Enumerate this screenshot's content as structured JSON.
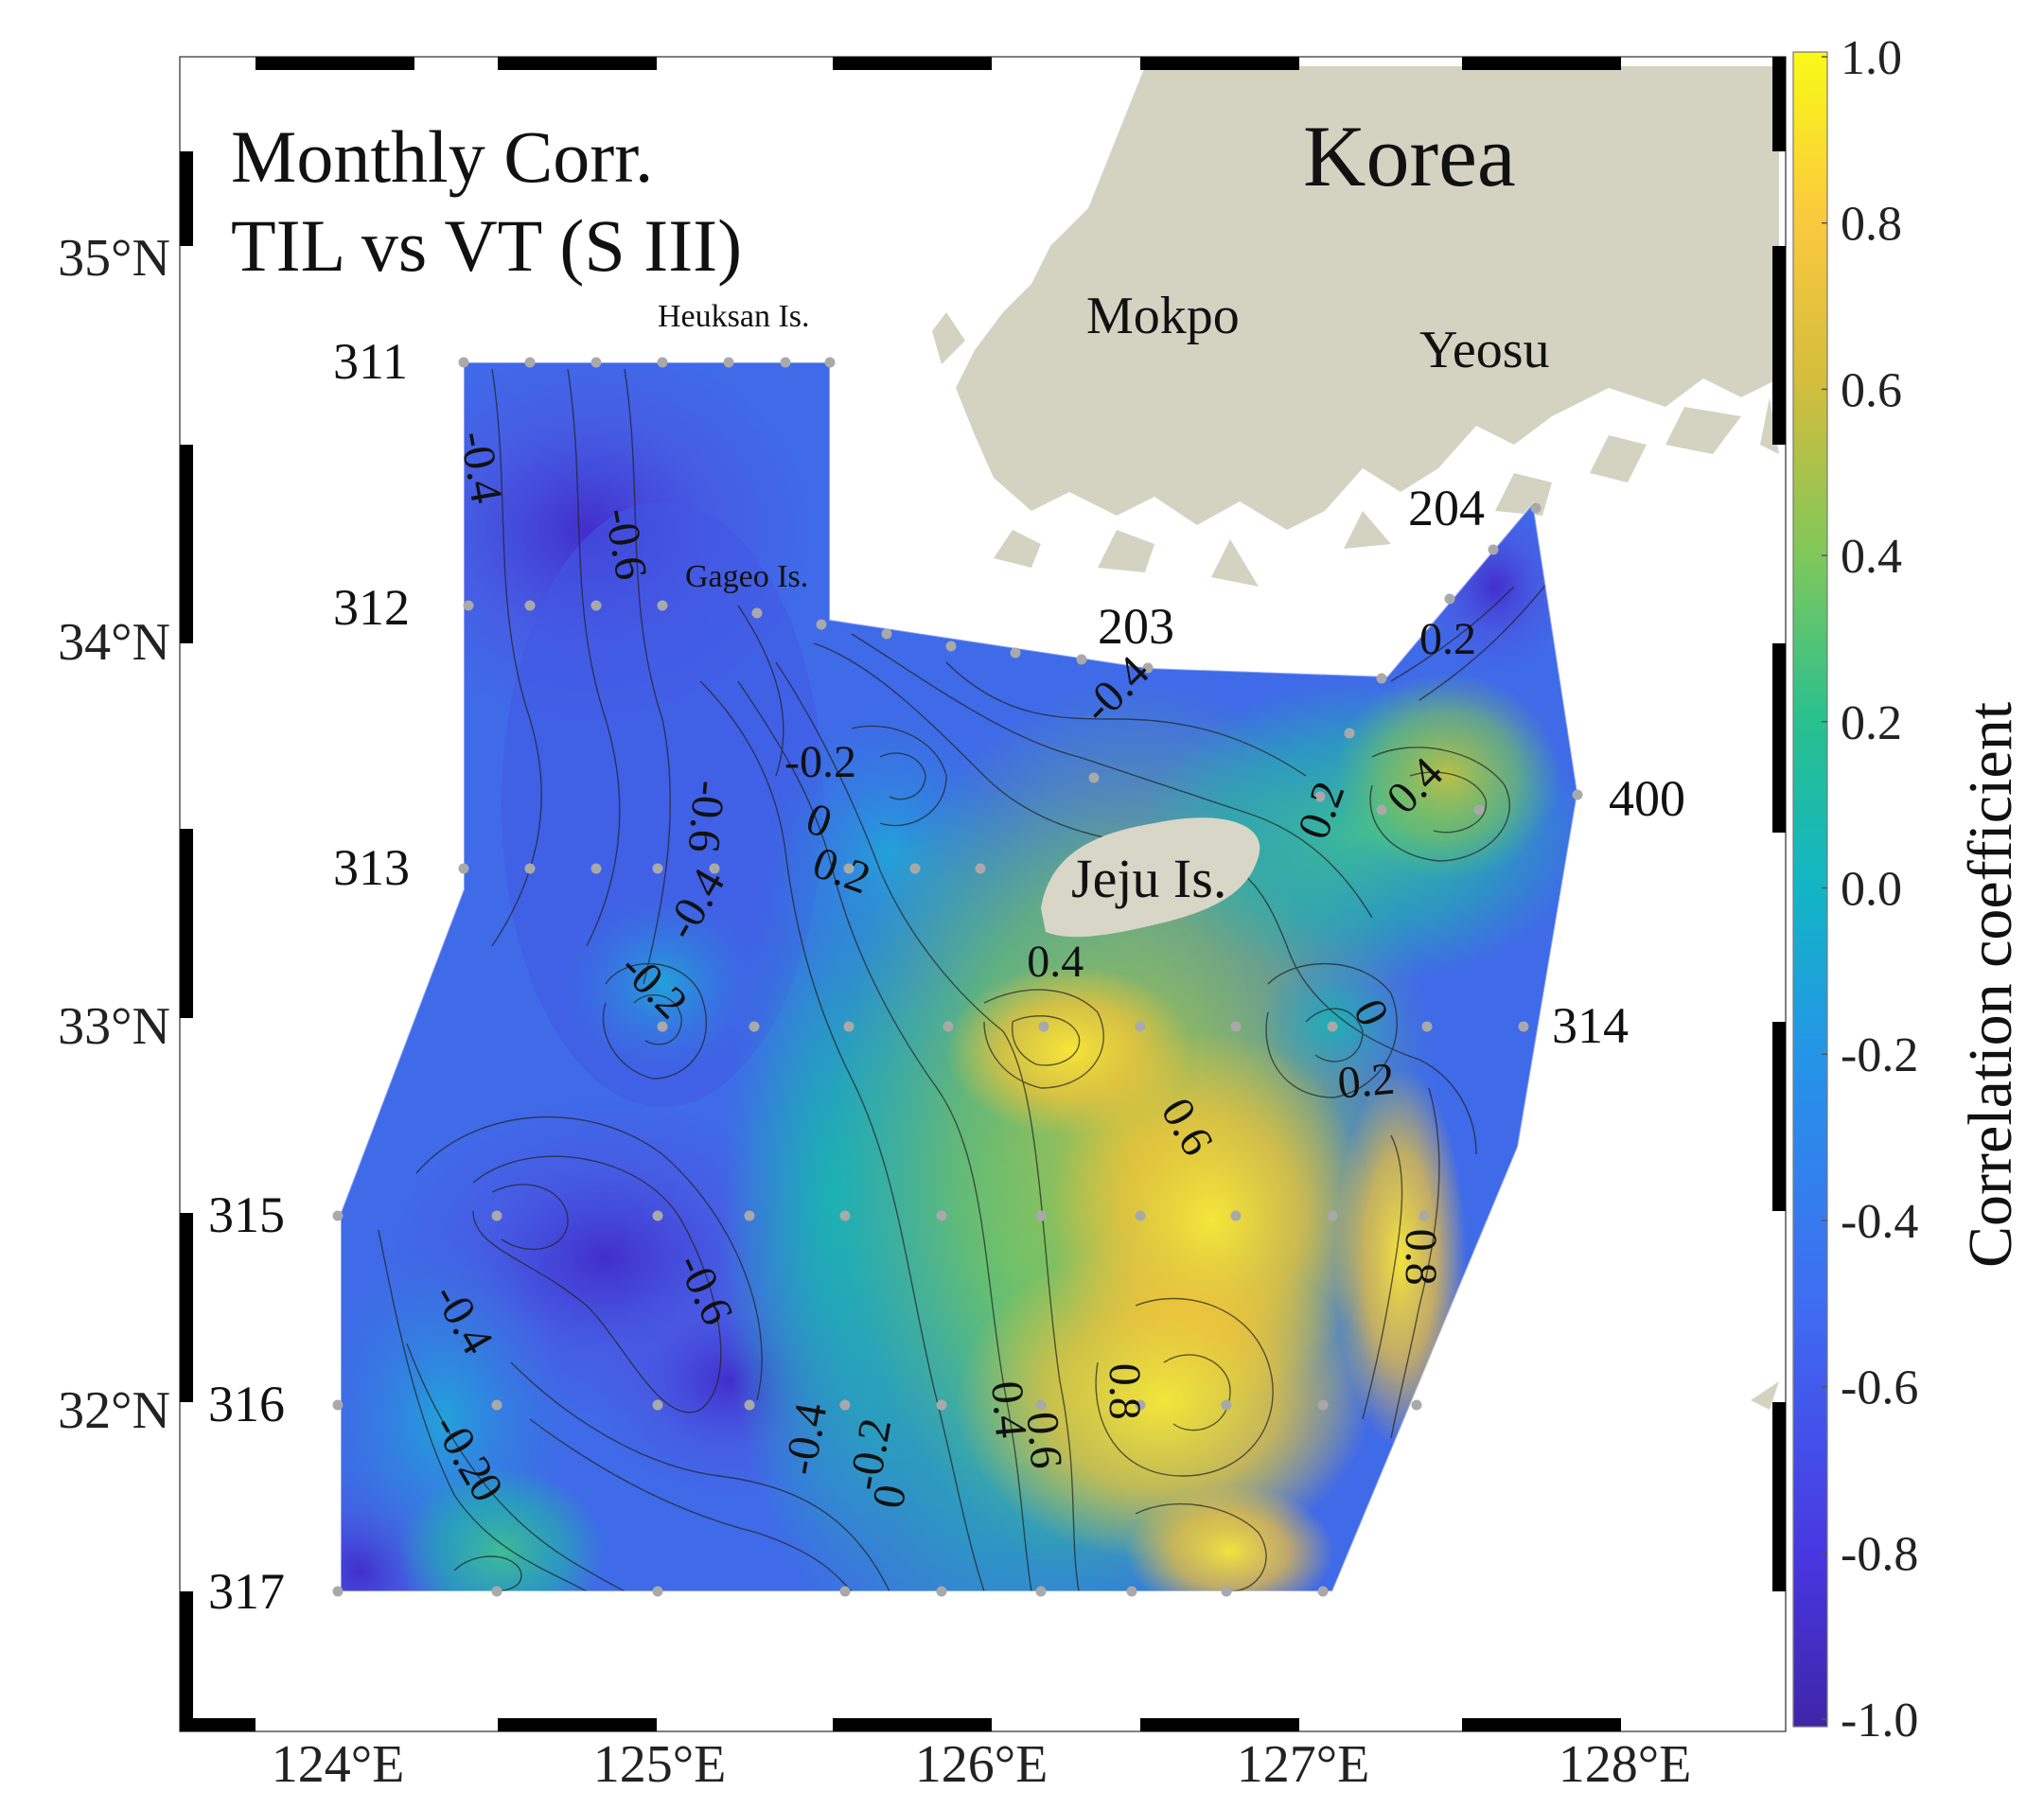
{
  "title": {
    "line1": "Monthly Corr.",
    "line2": "TIL vs VT (S III)"
  },
  "axes": {
    "x_ticks": [
      {
        "value": 124,
        "label": "124°E"
      },
      {
        "value": 125,
        "label": "125°E"
      },
      {
        "value": 126,
        "label": "126°E"
      },
      {
        "value": 127,
        "label": "127°E"
      },
      {
        "value": 128,
        "label": "128°E"
      }
    ],
    "y_ticks": [
      {
        "value": 35,
        "label": "35°N"
      },
      {
        "value": 34,
        "label": "34°N"
      },
      {
        "value": 33,
        "label": "33°N"
      },
      {
        "value": 32,
        "label": "32°N"
      }
    ],
    "xlim": [
      123.5,
      128.45
    ],
    "ylim": [
      31.35,
      35.45
    ]
  },
  "places": {
    "korea": "Korea",
    "mokpo": "Mokpo",
    "yeosu": "Yeosu",
    "jeju": "Jeju Is.",
    "heuksan": "Heuksan Is.",
    "gageo": "Gageo Is."
  },
  "lines": [
    {
      "name": "311",
      "lat": 34.7
    },
    {
      "name": "312",
      "lat": 34.1
    },
    {
      "name": "313",
      "lat": 33.4
    },
    {
      "name": "314",
      "lat": 33.0
    },
    {
      "name": "315",
      "lat": 32.5
    },
    {
      "name": "316",
      "lat": 32.0
    },
    {
      "name": "317",
      "lat": 31.5
    },
    {
      "name": "203",
      "lat": 33.95
    },
    {
      "name": "204",
      "lat": 34.3
    },
    {
      "name": "400",
      "lat": 33.6
    }
  ],
  "colorbar": {
    "label": "Correlation coefficient",
    "range": [
      -1.0,
      1.0
    ],
    "ticks": [
      "1.0",
      "0.8",
      "0.6",
      "0.4",
      "0.2",
      "0.0",
      "-0.2",
      "-0.4",
      "-0.6",
      "-0.8",
      "-1.0"
    ],
    "colors": [
      "#fcee21",
      "#f4c63a",
      "#c6c43a",
      "#5fc870",
      "#14b8b0",
      "#2b95d6",
      "#4c63e6",
      "#3e2a9a"
    ]
  },
  "chart_data": {
    "type": "heatmap",
    "title": "Monthly Corr. TIL vs VT (S III)",
    "colorbar_label": "Correlation coefficient",
    "value_range": [
      -1.0,
      1.0
    ],
    "contour_labels": [
      {
        "text": "-0.4",
        "lon": 124.4,
        "lat": 34.45
      },
      {
        "text": "-0.6",
        "lon": 124.85,
        "lat": 34.25
      },
      {
        "text": "-0.6",
        "lon": 125.1,
        "lat": 33.55
      },
      {
        "text": "-0.4",
        "lon": 125.15,
        "lat": 33.3
      },
      {
        "text": "-0.2",
        "lon": 125.5,
        "lat": 33.65
      },
      {
        "text": "0",
        "lon": 125.48,
        "lat": 33.5
      },
      {
        "text": "0.2",
        "lon": 125.55,
        "lat": 33.37
      },
      {
        "text": "-0.4",
        "lon": 126.45,
        "lat": 33.85
      },
      {
        "text": "-0.2",
        "lon": 124.95,
        "lat": 33.08
      },
      {
        "text": "0.4",
        "lon": 126.23,
        "lat": 33.13
      },
      {
        "text": "0.2",
        "lon": 127.1,
        "lat": 33.55
      },
      {
        "text": "0.4",
        "lon": 127.38,
        "lat": 33.6
      },
      {
        "text": "0.2",
        "lon": 127.45,
        "lat": 33.97
      },
      {
        "text": "0",
        "lon": 127.17,
        "lat": 33.02
      },
      {
        "text": "0.2",
        "lon": 127.2,
        "lat": 32.82
      },
      {
        "text": "0.6",
        "lon": 126.6,
        "lat": 32.72
      },
      {
        "text": "0.8",
        "lon": 127.32,
        "lat": 32.4
      },
      {
        "text": "-0.6",
        "lon": 125.1,
        "lat": 32.3
      },
      {
        "text": "-0.4",
        "lon": 124.35,
        "lat": 32.22
      },
      {
        "text": "-0.4",
        "lon": 125.5,
        "lat": 31.92
      },
      {
        "text": "-0.2",
        "lon": 125.7,
        "lat": 31.88
      },
      {
        "text": "0",
        "lon": 125.76,
        "lat": 31.77
      },
      {
        "text": "0.4",
        "lon": 126.04,
        "lat": 32.0
      },
      {
        "text": "0.6",
        "lon": 126.15,
        "lat": 31.92
      },
      {
        "text": "0.8",
        "lon": 126.4,
        "lat": 32.05
      },
      {
        "text": "-0.2",
        "lon": 124.35,
        "lat": 31.88
      },
      {
        "text": "0",
        "lon": 124.42,
        "lat": 31.78
      }
    ]
  }
}
